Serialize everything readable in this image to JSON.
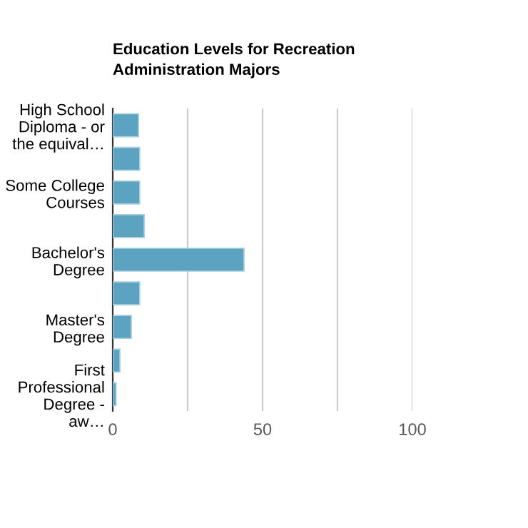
{
  "chart_data": {
    "type": "bar",
    "orientation": "horizontal",
    "title": "Education Levels for Recreation Administration Majors",
    "categories": [
      "High School Diploma - or the equival…",
      null,
      "Some College Courses",
      null,
      "Bachelor's Degree",
      null,
      "Master's Degree",
      null,
      "First Professional Degree - aw…"
    ],
    "values": [
      8.6,
      9.0,
      9.0,
      10.5,
      43.8,
      9.0,
      6.2,
      2.4,
      1.1
    ],
    "color": "#5ba3c0",
    "xlim": [
      0,
      100
    ],
    "xticks": [
      0,
      {
        "value": 25,
        "label": null
      },
      50,
      {
        "value": 75,
        "label": null
      },
      100
    ],
    "grid": "x",
    "legend": false
  }
}
